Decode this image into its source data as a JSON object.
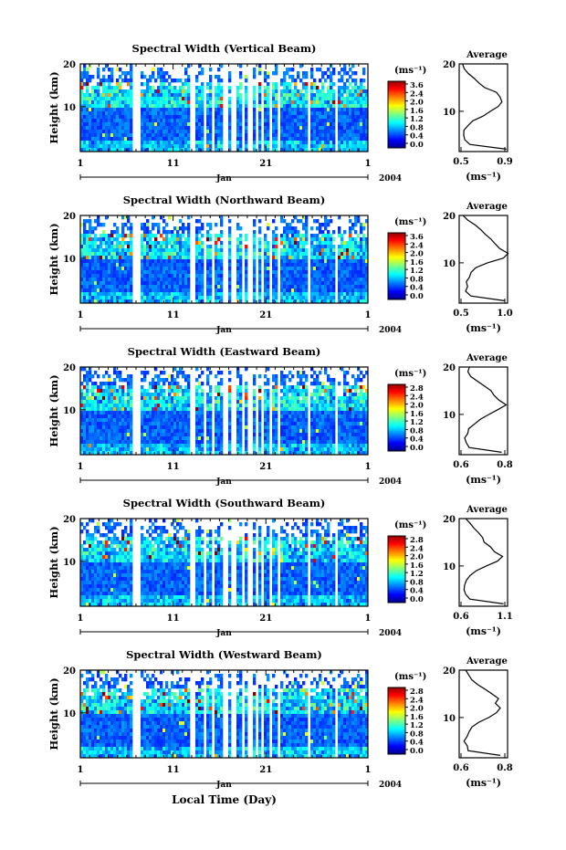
{
  "figure": {
    "xlabel_bottom": "Local Time (Day)"
  },
  "chart_data": [
    {
      "type": "heatmap",
      "title": "Spectral Width (Vertical Beam)",
      "ylabel": "Height (km)",
      "y_ticks": [
        "20",
        "10"
      ],
      "x_ticks": [
        "1",
        "11",
        "21",
        "1"
      ],
      "month": "Jan",
      "year": "2004",
      "colorbar": {
        "unit": "(ms⁻¹)",
        "ticks": [
          "3.6",
          "2.4",
          "2.0",
          "1.6",
          "1.2",
          "0.8",
          "0.4",
          "0.0"
        ]
      },
      "gaps": [
        [
          19.5,
          21.5
        ],
        [
          40.5,
          42.0
        ],
        [
          45.0,
          46.2
        ],
        [
          48.0,
          49.0
        ],
        [
          52.5,
          53.8
        ],
        [
          55.5,
          56.5
        ],
        [
          58.8,
          59.5
        ],
        [
          61.5,
          62.5
        ],
        [
          64.0,
          64.8
        ],
        [
          66.5,
          67.4
        ],
        [
          69.0,
          69.8
        ],
        [
          71.8,
          72.5
        ],
        [
          83.2,
          84.2
        ],
        [
          93.0,
          93.8
        ]
      ],
      "profile_title": "Average",
      "profile": {
        "xlim": [
          0.5,
          0.9
        ],
        "x_ticks": [
          "0.5",
          "0.9"
        ],
        "xlabel": "(ms⁻¹)",
        "y_ticks": [
          "20",
          "10"
        ],
        "heights": [
          2,
          3,
          4,
          5,
          6,
          7,
          8,
          9,
          10,
          11,
          12,
          13,
          14,
          15,
          16,
          17,
          18,
          19,
          20
        ],
        "values": [
          0.88,
          0.58,
          0.54,
          0.53,
          0.55,
          0.58,
          0.62,
          0.7,
          0.76,
          0.83,
          0.86,
          0.85,
          0.8,
          0.72,
          0.66,
          0.62,
          0.58,
          0.55,
          0.54
        ]
      }
    },
    {
      "type": "heatmap",
      "title": "Spectral Width (Northward Beam)",
      "ylabel": "Height (km)",
      "y_ticks": [
        "20",
        "10"
      ],
      "x_ticks": [
        "1",
        "11",
        "21",
        "1"
      ],
      "month": "Jan",
      "year": "2004",
      "colorbar": {
        "unit": "(ms⁻¹)",
        "ticks": [
          "3.6",
          "2.4",
          "2.0",
          "1.6",
          "1.2",
          "0.8",
          "0.4",
          "0.0"
        ]
      },
      "gaps": [
        [
          19.5,
          21.5
        ],
        [
          40.5,
          42.0
        ],
        [
          45.0,
          46.2
        ],
        [
          48.0,
          49.0
        ],
        [
          52.5,
          53.8
        ],
        [
          55.5,
          56.5
        ],
        [
          58.8,
          59.5
        ],
        [
          61.5,
          62.5
        ],
        [
          64.0,
          64.8
        ],
        [
          66.5,
          67.4
        ],
        [
          69.0,
          69.8
        ],
        [
          71.8,
          72.5
        ],
        [
          83.2,
          84.2
        ],
        [
          93.0,
          93.8
        ]
      ],
      "profile_title": "Average",
      "profile": {
        "xlim": [
          0.5,
          1.0
        ],
        "x_ticks": [
          "0.5",
          "1.0"
        ],
        "xlabel": "(ms⁻¹)",
        "y_ticks": [
          "20",
          "10"
        ],
        "heights": [
          2,
          3,
          4,
          5,
          6,
          7,
          8,
          9,
          10,
          11,
          12,
          13,
          14,
          15,
          16,
          17,
          18,
          19,
          20
        ],
        "values": [
          0.98,
          0.62,
          0.56,
          0.58,
          0.57,
          0.6,
          0.63,
          0.68,
          0.8,
          0.95,
          1.0,
          0.92,
          0.86,
          0.82,
          0.76,
          0.72,
          0.66,
          0.6,
          0.55
        ]
      }
    },
    {
      "type": "heatmap",
      "title": "Spectral Width (Eastward Beam)",
      "ylabel": "Height (km)",
      "y_ticks": [
        "20",
        "10"
      ],
      "x_ticks": [
        "1",
        "11",
        "21",
        "1"
      ],
      "month": "Jan",
      "year": "2004",
      "colorbar": {
        "unit": "(ms⁻¹)",
        "ticks": [
          "2.8",
          "2.4",
          "2.0",
          "1.6",
          "1.2",
          "0.8",
          "0.4",
          "0.0"
        ]
      },
      "gaps": [
        [
          19.5,
          21.5
        ],
        [
          40.5,
          42.0
        ],
        [
          45.0,
          46.2
        ],
        [
          48.0,
          49.0
        ],
        [
          52.5,
          53.8
        ],
        [
          55.5,
          56.5
        ],
        [
          58.8,
          59.5
        ],
        [
          61.5,
          62.5
        ],
        [
          64.0,
          64.8
        ],
        [
          66.5,
          67.4
        ],
        [
          69.0,
          69.8
        ],
        [
          71.8,
          72.5
        ],
        [
          83.2,
          84.2
        ],
        [
          93.0,
          93.8
        ]
      ],
      "profile_title": "Average",
      "profile": {
        "xlim": [
          0.5,
          0.9
        ],
        "x_ticks": [
          "0.6",
          "0.8"
        ],
        "xlabel": "(ms⁻¹)",
        "y_ticks": [
          "20",
          "10"
        ],
        "heights": [
          2,
          3,
          4,
          5,
          6,
          7,
          8,
          9,
          10,
          11,
          12,
          13,
          14,
          15,
          16,
          17,
          18,
          19,
          20
        ],
        "values": [
          0.86,
          0.58,
          0.55,
          0.54,
          0.56,
          0.59,
          0.62,
          0.68,
          0.74,
          0.82,
          0.88,
          0.84,
          0.8,
          0.76,
          0.7,
          0.66,
          0.6,
          0.56,
          0.58
        ]
      }
    },
    {
      "type": "heatmap",
      "title": "Spectral Width (Southward Beam)",
      "ylabel": "Height (km)",
      "y_ticks": [
        "20",
        "10"
      ],
      "x_ticks": [
        "1",
        "11",
        "21",
        "1"
      ],
      "month": "Jan",
      "year": "2004",
      "colorbar": {
        "unit": "(ms⁻¹)",
        "ticks": [
          "2.8",
          "2.4",
          "2.0",
          "1.6",
          "1.2",
          "0.8",
          "0.4",
          "0.0"
        ]
      },
      "gaps": [
        [
          19.5,
          21.5
        ],
        [
          40.5,
          42.0
        ],
        [
          45.0,
          46.2
        ],
        [
          48.0,
          49.0
        ],
        [
          52.5,
          53.8
        ],
        [
          55.5,
          56.5
        ],
        [
          58.8,
          59.5
        ],
        [
          61.5,
          62.5
        ],
        [
          64.0,
          64.8
        ],
        [
          66.5,
          67.4
        ],
        [
          69.0,
          69.8
        ],
        [
          71.8,
          72.5
        ],
        [
          83.2,
          84.2
        ],
        [
          93.0,
          93.8
        ]
      ],
      "profile_title": "Average",
      "profile": {
        "xlim": [
          0.5,
          1.1
        ],
        "x_ticks": [
          "0.6",
          "1.1"
        ],
        "xlabel": "(ms⁻¹)",
        "y_ticks": [
          "20",
          "10"
        ],
        "heights": [
          2,
          3,
          4,
          5,
          6,
          7,
          8,
          9,
          10,
          11,
          12,
          13,
          14,
          15,
          16,
          17,
          18,
          19,
          20
        ],
        "values": [
          1.05,
          0.62,
          0.57,
          0.56,
          0.58,
          0.6,
          0.64,
          0.72,
          0.84,
          0.98,
          1.02,
          0.94,
          0.88,
          0.82,
          0.78,
          0.74,
          0.68,
          0.62,
          0.58
        ]
      }
    },
    {
      "type": "heatmap",
      "title": "Spectral Width (Westward Beam)",
      "ylabel": "Height (km)",
      "y_ticks": [
        "20",
        "10"
      ],
      "x_ticks": [
        "1",
        "11",
        "21",
        "1"
      ],
      "month": "Jan",
      "year": "2004",
      "colorbar": {
        "unit": "(ms⁻¹)",
        "ticks": [
          "2.8",
          "2.4",
          "2.0",
          "1.6",
          "1.2",
          "0.8",
          "0.4",
          "0.0"
        ]
      },
      "gaps": [
        [
          19.5,
          21.5
        ],
        [
          40.5,
          42.0
        ],
        [
          45.0,
          46.2
        ],
        [
          48.0,
          49.0
        ],
        [
          52.5,
          53.8
        ],
        [
          55.5,
          56.5
        ],
        [
          58.8,
          59.5
        ],
        [
          61.5,
          62.5
        ],
        [
          64.0,
          64.8
        ],
        [
          66.5,
          67.4
        ],
        [
          69.0,
          69.8
        ],
        [
          71.8,
          72.5
        ],
        [
          83.2,
          84.2
        ],
        [
          93.0,
          93.8
        ]
      ],
      "profile_title": "Average",
      "profile": {
        "xlim": [
          0.5,
          1.0
        ],
        "x_ticks": [
          "0.6",
          "0.8"
        ],
        "xlabel": "(ms⁻¹)",
        "y_ticks": [
          "20",
          "10"
        ],
        "heights": [
          2,
          3,
          4,
          5,
          6,
          7,
          8,
          9,
          10,
          11,
          12,
          13,
          14,
          15,
          16,
          17,
          18,
          19,
          20
        ],
        "values": [
          0.92,
          0.6,
          0.57,
          0.56,
          0.58,
          0.6,
          0.64,
          0.7,
          0.8,
          0.88,
          0.92,
          0.86,
          0.9,
          0.84,
          0.78,
          0.7,
          0.64,
          0.6,
          0.56
        ]
      }
    }
  ]
}
